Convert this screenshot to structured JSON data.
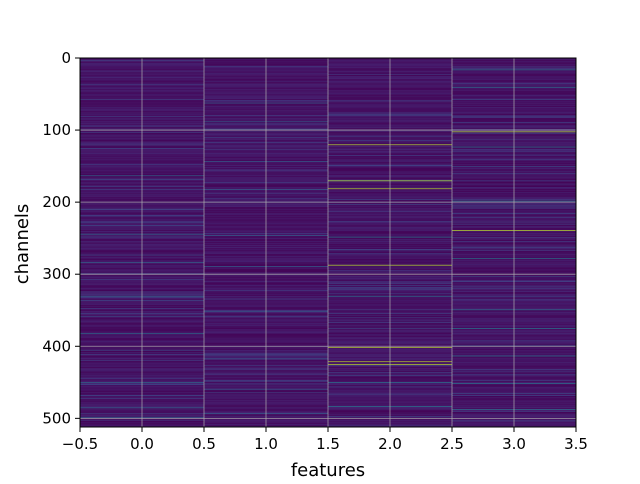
{
  "chart_data": {
    "type": "heatmap",
    "title": "",
    "xlabel": "features",
    "ylabel": "channels",
    "xlim": [
      -0.5,
      3.5
    ],
    "ylim": [
      512,
      0
    ],
    "y_inverted": true,
    "grid": true,
    "colormap": "viridis",
    "n_rows": 512,
    "n_cols": 4,
    "x_ticks": [
      -0.5,
      0.0,
      0.5,
      1.0,
      1.5,
      2.0,
      2.5,
      3.0,
      3.5
    ],
    "x_tick_labels": [
      "−0.5",
      "0.0",
      "0.5",
      "1.0",
      "1.5",
      "2.0",
      "2.5",
      "3.0",
      "3.5"
    ],
    "y_ticks": [
      0,
      100,
      200,
      300,
      400,
      500
    ],
    "y_tick_labels": [
      "0",
      "100",
      "200",
      "300",
      "400",
      "500"
    ],
    "background_level": 0.06,
    "highlights": [
      {
        "col": 0,
        "rows": [
          163,
          244,
          283,
          330,
          382,
          450,
          485,
          498
        ],
        "level": 0.35
      },
      {
        "col": 0,
        "rows": [
          125,
          168,
          232,
          273,
          336,
          358,
          405,
          468
        ],
        "level": 0.22
      },
      {
        "col": 1,
        "rows": [
          62,
          88,
          143,
          182,
          246,
          289,
          351,
          417,
          459,
          493
        ],
        "level": 0.3
      },
      {
        "col": 2,
        "rows": [
          120,
          170,
          181,
          287,
          401,
          421,
          425
        ],
        "level": 0.9
      },
      {
        "col": 2,
        "rows": [
          248,
          330,
          450,
          483
        ],
        "level": 0.4
      },
      {
        "col": 2,
        "rows": [
          196,
          226,
          266,
          312,
          366,
          440,
          497
        ],
        "level": 0.2
      },
      {
        "col": 3,
        "rows": [
          102,
          239
        ],
        "level": 0.9
      },
      {
        "col": 3,
        "rows": [
          16,
          40,
          123,
          198,
          278,
          349,
          375,
          413,
          451,
          487
        ],
        "level": 0.4
      },
      {
        "col": 3,
        "rows": [
          57,
          80,
          150,
          215,
          262,
          303,
          330,
          398,
          465,
          503
        ],
        "level": 0.22
      }
    ]
  }
}
